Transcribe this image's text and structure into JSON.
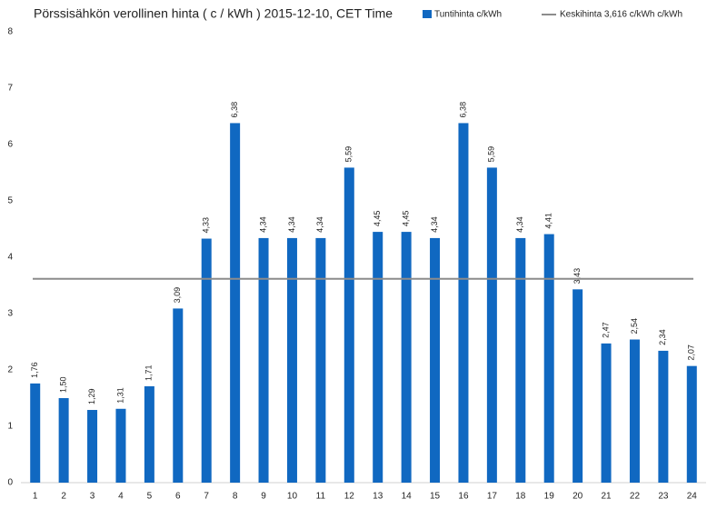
{
  "chart_data": {
    "type": "bar",
    "title": "Pörssisähkön verollinen hinta ( c / kWh ) 2015-12-10, CET Time",
    "categories": [
      "1",
      "2",
      "3",
      "4",
      "5",
      "6",
      "7",
      "8",
      "9",
      "10",
      "11",
      "12",
      "13",
      "14",
      "15",
      "16",
      "17",
      "18",
      "19",
      "20",
      "21",
      "22",
      "23",
      "24"
    ],
    "series": [
      {
        "name": "Tuntihinta c/kWh",
        "color": "#1068c1",
        "values": [
          1.76,
          1.5,
          1.29,
          1.31,
          1.71,
          3.09,
          4.33,
          6.38,
          4.34,
          4.34,
          4.34,
          5.59,
          4.45,
          4.45,
          4.34,
          6.38,
          5.59,
          4.34,
          4.41,
          3.43,
          2.47,
          2.54,
          2.34,
          2.07
        ],
        "value_labels": [
          "1,76",
          "1,50",
          "1,29",
          "1,31",
          "1,71",
          "3,09",
          "4,33",
          "6,38",
          "4,34",
          "4,34",
          "4,34",
          "5,59",
          "4,45",
          "4,45",
          "4,34",
          "6,38",
          "5,59",
          "4,34",
          "4,41",
          "3,43",
          "2,47",
          "2,54",
          "2,34",
          "2,07"
        ]
      }
    ],
    "average": {
      "name": "Keskihinta 3,616 c/kWh c/kWh",
      "value": 3.616,
      "color": "#8c8c8c"
    },
    "ylim": [
      0,
      8
    ],
    "yticks": [
      0,
      1,
      2,
      3,
      4,
      5,
      6,
      7,
      8
    ],
    "grid": false
  }
}
